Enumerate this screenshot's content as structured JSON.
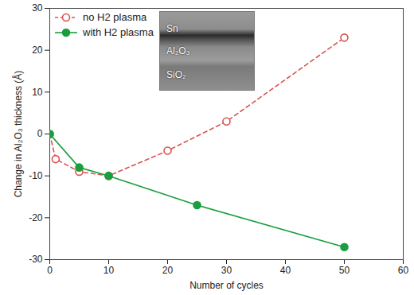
{
  "chart_data": {
    "type": "line",
    "x_label": "Number of cycles",
    "y_label": "Change in Al₂O₃ thickness (Å)",
    "xlim": [
      0,
      60
    ],
    "xticks": [
      0,
      10,
      20,
      30,
      40,
      50,
      60
    ],
    "ylim": [
      -30,
      30
    ],
    "yticks": [
      -30,
      -20,
      -10,
      0,
      10,
      20,
      30
    ],
    "grid": false,
    "legend": "upper left",
    "series": [
      {
        "name": "no H2 plasma",
        "color": "#d9534f",
        "marker": "open circle",
        "line_style": "dashed",
        "x": [
          0,
          1,
          5,
          10,
          20,
          30,
          50
        ],
        "values": [
          0,
          -6,
          -9,
          -10,
          -4,
          3,
          23
        ]
      },
      {
        "name": "with H2 plasma",
        "color": "#1a9e3f",
        "marker": "filled circle",
        "line_style": "solid",
        "x": [
          0,
          5,
          10,
          25,
          50
        ],
        "values": [
          0,
          -8,
          -10,
          -17,
          -27
        ]
      }
    ],
    "annotations": [
      "Sn",
      "Al₂O₃",
      "SiO₂"
    ]
  }
}
